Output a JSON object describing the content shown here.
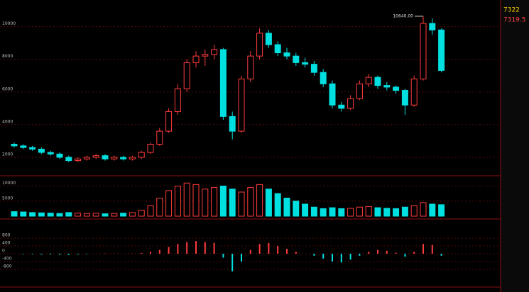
{
  "chart_data": {
    "type": "candlestick",
    "categories": [
      null,
      null,
      null,
      null,
      null,
      null,
      null,
      null,
      null,
      null,
      null,
      null,
      null,
      null,
      null,
      null,
      null,
      null,
      null,
      null,
      null,
      null,
      null,
      null,
      null,
      null,
      null,
      null,
      null,
      null,
      null,
      null,
      null,
      null,
      null,
      null,
      null,
      null,
      null,
      null,
      null,
      null,
      null,
      null,
      null,
      null,
      null,
      null
    ],
    "open": [
      2800,
      2700,
      2600,
      2500,
      2300,
      2200,
      2000,
      1800,
      1900,
      2000,
      2100,
      1900,
      2000,
      1900,
      2000,
      2300,
      2800,
      3600,
      4800,
      6200,
      7800,
      8200,
      8300,
      8600,
      4500,
      3600,
      6800,
      8200,
      9600,
      8900,
      8400,
      8200,
      7800,
      7700,
      7200,
      6500,
      5200,
      5000,
      5600,
      6500,
      6900,
      6400,
      6300,
      6100,
      5200,
      6800,
      10200,
      9800
    ],
    "high": [
      2900,
      2800,
      2700,
      2600,
      2400,
      2300,
      2100,
      2000,
      2100,
      2200,
      2200,
      2100,
      2100,
      2100,
      2400,
      2900,
      3800,
      5000,
      6500,
      8000,
      8500,
      8600,
      8900,
      8700,
      4800,
      7000,
      8500,
      9900,
      9800,
      9100,
      8700,
      8400,
      8100,
      7900,
      7400,
      6700,
      5400,
      5800,
      6700,
      7100,
      7000,
      6600,
      6400,
      6200,
      7000,
      10640,
      10500,
      9900
    ],
    "low": [
      2600,
      2500,
      2400,
      2200,
      2100,
      1900,
      1700,
      1700,
      1800,
      1900,
      1800,
      1800,
      1800,
      1800,
      1900,
      2200,
      2700,
      3500,
      4600,
      6000,
      7500,
      7600,
      8000,
      4300,
      3100,
      3500,
      6600,
      8000,
      8700,
      8200,
      8000,
      7600,
      7500,
      7000,
      6300,
      5000,
      4800,
      4900,
      5500,
      6300,
      6200,
      6100,
      5900,
      4600,
      5100,
      6700,
      9500,
      7200
    ],
    "close": [
      2700,
      2600,
      2500,
      2300,
      2200,
      2000,
      1800,
      1900,
      2000,
      2100,
      1900,
      2000,
      1900,
      2000,
      2300,
      2800,
      3600,
      4800,
      6200,
      7800,
      8200,
      8300,
      8600,
      4500,
      3600,
      6800,
      8200,
      9600,
      8900,
      8400,
      8200,
      7800,
      7700,
      7200,
      6500,
      5200,
      5000,
      5600,
      6500,
      6900,
      6400,
      6300,
      6100,
      5200,
      6800,
      10200,
      9800,
      7320
    ],
    "up_color": "#ff3c3c",
    "down_color": "#00e0e0",
    "ylim": [
      1000,
      11200
    ],
    "yticks": [
      2000,
      4000,
      6000,
      8000,
      10000
    ],
    "annotations": [
      {
        "value": 10640,
        "label": "10640.00"
      }
    ],
    "volume": {
      "values": [
        1500,
        1400,
        1200,
        1100,
        1000,
        900,
        1200,
        1000,
        900,
        1000,
        800,
        900,
        1000,
        1200,
        2000,
        3500,
        6000,
        8500,
        10000,
        11000,
        10500,
        9000,
        9500,
        10000,
        9000,
        8000,
        9500,
        10500,
        9000,
        7500,
        6000,
        5000,
        4000,
        3000,
        2500,
        2800,
        2500,
        2600,
        3000,
        3200,
        2800,
        2600,
        2500,
        3000,
        3500,
        4500,
        4000,
        3800
      ],
      "ylim": [
        0,
        12000
      ],
      "yticks": [
        5000,
        10000
      ]
    },
    "macd": {
      "values": [
        0,
        -20,
        -30,
        -40,
        -40,
        -50,
        -60,
        -40,
        -20,
        0,
        10,
        10,
        0,
        10,
        40,
        100,
        200,
        350,
        500,
        600,
        650,
        600,
        550,
        -200,
        -900,
        -400,
        200,
        500,
        550,
        400,
        250,
        100,
        0,
        -100,
        -250,
        -400,
        -450,
        -300,
        -100,
        100,
        200,
        150,
        50,
        -150,
        100,
        500,
        450,
        -100
      ],
      "ylim": [
        -1600,
        1600
      ],
      "yticks": [
        -800,
        -400,
        0,
        400,
        800
      ]
    }
  },
  "side_panel": {
    "price": "7322",
    "last": "7319.5"
  }
}
